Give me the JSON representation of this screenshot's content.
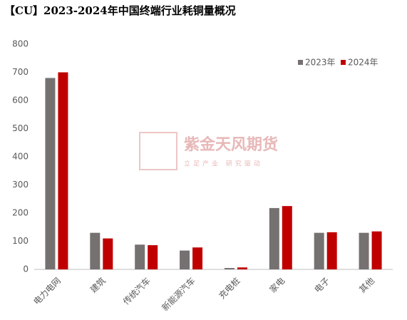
{
  "chart_data": {
    "type": "bar",
    "title": "【CU】2023-2024年中国终端行业耗铜量概况",
    "categories": [
      "电力电网",
      "建筑",
      "传统汽车",
      "新能源汽车",
      "充电桩",
      "家电",
      "电子",
      "其他"
    ],
    "series": [
      {
        "name": "2023年",
        "color": "#767171",
        "values": [
          680,
          130,
          88,
          67,
          5,
          218,
          130,
          130
        ]
      },
      {
        "name": "2024年",
        "color": "#c00000",
        "values": [
          700,
          110,
          86,
          78,
          7,
          225,
          132,
          135
        ]
      }
    ],
    "ylim": [
      0,
      800
    ],
    "yticks": [
      0,
      100,
      200,
      300,
      400,
      500,
      600,
      700,
      800
    ],
    "grid": false,
    "legend": "top-right",
    "watermark": {
      "name": "紫金天风期货",
      "slogan": "立足产业 研究驱动"
    }
  }
}
